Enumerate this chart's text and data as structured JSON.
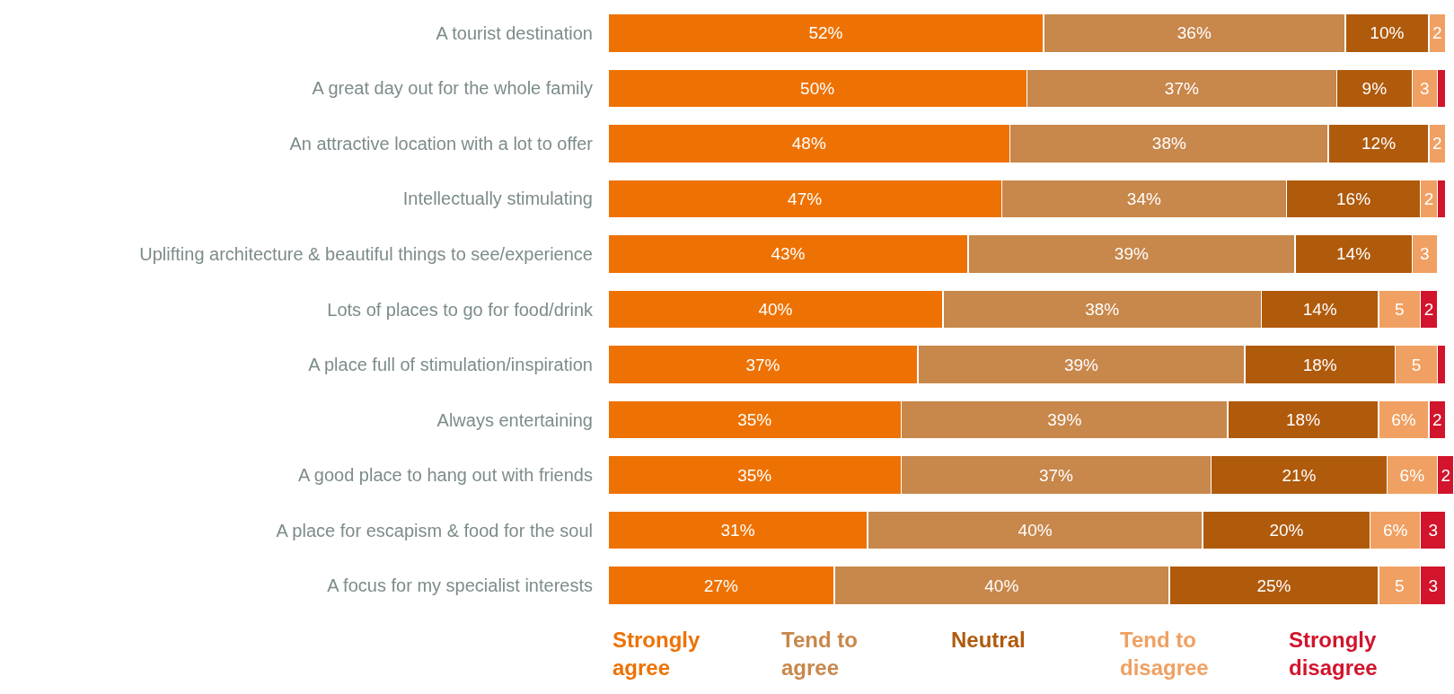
{
  "chart_data": {
    "type": "bar",
    "orientation": "horizontal",
    "stacked": true,
    "xlim": [
      0,
      101
    ],
    "tick_labels": "y",
    "legend": "bottom",
    "categories": [
      "A tourist destination",
      "A great day out for the whole family",
      "An attractive location with a lot to offer",
      "Intellectually stimulating",
      "Uplifting architecture & beautiful things to see/experience",
      "Lots of places to go for food/drink",
      "A place full of stimulation/inspiration",
      "Always entertaining",
      "A good place to hang out with friends",
      "A place for escapism & food for the soul",
      "A focus for my specialist interests"
    ],
    "series": [
      {
        "name": "Strongly agree",
        "color": "#ee7203",
        "values": [
          52,
          50,
          48,
          47,
          43,
          40,
          37,
          35,
          35,
          31,
          27
        ],
        "value_labels": [
          "52%",
          "50%",
          "48%",
          "47%",
          "43%",
          "40%",
          "37%",
          "35%",
          "35%",
          "31%",
          "27%"
        ]
      },
      {
        "name": "Tend to agree",
        "color": "#c8874b",
        "values": [
          36,
          37,
          38,
          34,
          39,
          38,
          39,
          39,
          37,
          40,
          40
        ],
        "value_labels": [
          "36%",
          "37%",
          "38%",
          "34%",
          "39%",
          "38%",
          "39%",
          "39%",
          "37%",
          "40%",
          "40%"
        ]
      },
      {
        "name": "Neutral",
        "color": "#b05a0c",
        "values": [
          10,
          9,
          12,
          16,
          14,
          14,
          18,
          18,
          21,
          20,
          25
        ],
        "value_labels": [
          "10%",
          "9%",
          "12%",
          "16%",
          "14%",
          "14%",
          "18%",
          "18%",
          "21%",
          "20%",
          "25%"
        ]
      },
      {
        "name": "Tend to disagree",
        "color": "#f0a062",
        "values": [
          2,
          3,
          2,
          2,
          3,
          5,
          5,
          6,
          6,
          6,
          5
        ],
        "value_labels": [
          "2",
          "3",
          "2",
          "2",
          "3",
          "5",
          "5",
          "6%",
          "6%",
          "6%",
          "5"
        ]
      },
      {
        "name": "Strongly disagree",
        "color": "#d2142c",
        "values": [
          null,
          1,
          null,
          1,
          null,
          2,
          1,
          2,
          2,
          3,
          3
        ],
        "value_labels": [
          null,
          null,
          null,
          null,
          null,
          "2",
          null,
          "2",
          "2",
          "3",
          "3"
        ]
      }
    ]
  }
}
